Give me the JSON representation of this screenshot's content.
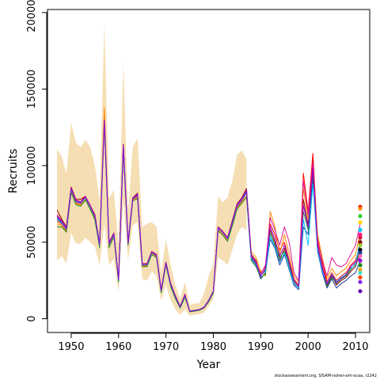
{
  "chart_data": {
    "type": "line",
    "title": "",
    "xlabel": "Year",
    "ylabel": "Recruits",
    "xlim": [
      1945,
      2013
    ],
    "ylim": [
      -9000,
      202000
    ],
    "x_ticks": [
      1950,
      1960,
      1970,
      1980,
      1990,
      2000,
      2010
    ],
    "y_ticks": [
      0,
      50000,
      100000,
      150000,
      200000
    ],
    "x_tick_labels": [
      "1950",
      "1960",
      "1970",
      "1980",
      "1990",
      "2000",
      "2010"
    ],
    "y_tick_labels": [
      "0",
      "50000",
      "100000",
      "150000",
      "200000"
    ],
    "grid": false,
    "legend": "none",
    "band_color": "#f5deb3",
    "band": {
      "x": [
        1947,
        1948,
        1949,
        1950,
        1951,
        1952,
        1953,
        1954,
        1955,
        1956,
        1957,
        1958,
        1959,
        1960,
        1961,
        1962,
        1963,
        1964,
        1965,
        1966,
        1967,
        1968,
        1969,
        1970,
        1971,
        1972,
        1973,
        1974,
        1975,
        1976,
        1977,
        1978,
        1979,
        1980,
        1981,
        1982,
        1983,
        1984,
        1985,
        1986,
        1987
      ],
      "lower": [
        38000,
        41000,
        36000,
        56000,
        49000,
        49000,
        53000,
        50000,
        47000,
        35000,
        62000,
        35000,
        39000,
        17000,
        78000,
        38000,
        61000,
        63000,
        26000,
        25000,
        31000,
        28000,
        12000,
        22000,
        12000,
        6000,
        2500,
        6000,
        2000,
        2500,
        3000,
        4000,
        8000,
        13000,
        40000,
        38000,
        35000,
        45000,
        55000,
        60000,
        58000
      ],
      "upper": [
        111000,
        106000,
        95000,
        128000,
        115000,
        112000,
        117000,
        112000,
        100000,
        78000,
        193000,
        79000,
        84000,
        48000,
        167000,
        70000,
        112000,
        118000,
        60000,
        62000,
        63000,
        60000,
        30000,
        52000,
        35000,
        22000,
        13000,
        24000,
        9000,
        10000,
        10000,
        16000,
        28000,
        36000,
        80000,
        76000,
        79000,
        90000,
        107000,
        110000,
        104000
      ]
    },
    "series": [
      {
        "color": "#8b0000",
        "values": [
          71000,
          65000,
          60000,
          86000,
          78000,
          78000,
          80000,
          74000,
          68000,
          49000,
          131000,
          50000,
          56000,
          26000,
          114000,
          50000,
          79000,
          82000,
          36000,
          36000,
          44000,
          42000,
          19000,
          37000,
          23000,
          15000,
          8000,
          16000,
          5000,
          5500,
          6000,
          7500,
          12000,
          18000,
          60000,
          57000,
          53000,
          64000,
          75000,
          79000,
          85000,
          42000,
          38000,
          28000,
          32000,
          58000,
          50000,
          38000,
          46000,
          35000,
          23000,
          20000,
          78000,
          61000,
          105000,
          48000,
          34000,
          22000,
          28000,
          22000,
          25000,
          27000,
          31000,
          34000,
          44000
        ]
      },
      {
        "color": "#ff0000",
        "values": [
          64000,
          62000,
          58000,
          84000,
          76000,
          75000,
          79000,
          73000,
          66000,
          48000,
          128000,
          48000,
          55000,
          25000,
          112000,
          49000,
          78000,
          80000,
          35000,
          35000,
          43000,
          41000,
          18000,
          36000,
          22000,
          14000,
          7500,
          15000,
          4800,
          5200,
          5800,
          7200,
          11500,
          17500,
          59000,
          56000,
          52000,
          62000,
          73000,
          77000,
          82000,
          40000,
          36000,
          30000,
          34000,
          62000,
          55000,
          45000,
          50000,
          38000,
          26000,
          22000,
          95000,
          70000,
          108000,
          52000,
          37000,
          24000,
          30000,
          25000,
          28000,
          30000,
          35000,
          38000,
          48000
        ]
      },
      {
        "color": "#1e3ca0",
        "values": [
          66000,
          63000,
          59000,
          85000,
          77000,
          76000,
          79500,
          73500,
          67000,
          48500,
          129000,
          49000,
          55500,
          25500,
          113000,
          49500,
          78500,
          81000,
          35500,
          35500,
          43500,
          41500,
          18500,
          36500,
          22500,
          14500,
          7800,
          15500,
          4900,
          5300,
          5900,
          7300,
          11800,
          17800,
          59500,
          56500,
          52500,
          63000,
          74000,
          78000,
          83000,
          39000,
          35000,
          26000,
          30000,
          52000,
          46000,
          35000,
          42000,
          32000,
          22000,
          19000,
          60000,
          55000,
          92000,
          44000,
          30000,
          20000,
          26000,
          20000,
          23000,
          25000,
          28000,
          30000,
          38000
        ]
      },
      {
        "color": "#ff8c00",
        "values": [
          62000,
          61000,
          57000,
          83000,
          75000,
          74000,
          78000,
          72000,
          65000,
          47000,
          138000,
          47000,
          54000,
          24500,
          111000,
          48500,
          77500,
          79000,
          34500,
          34500,
          42500,
          40500,
          17500,
          35500,
          21500,
          13500,
          7200,
          14500,
          4600,
          5000,
          5600,
          7000,
          11200,
          17000,
          58000,
          55000,
          51000,
          61000,
          72000,
          76000,
          80000,
          44000,
          40000,
          31000,
          28000,
          70000,
          60000,
          42000,
          55000,
          42000,
          28000,
          24000,
          85000,
          65000,
          100000,
          55000,
          40000,
          26000,
          33000,
          28000,
          31000,
          33000,
          38000,
          42000,
          56000
        ]
      },
      {
        "color": "#228b22",
        "values": [
          60000,
          60000,
          56500,
          82500,
          74500,
          73500,
          77500,
          71500,
          64500,
          46500,
          127000,
          46500,
          53500,
          24000,
          110000,
          48000,
          77000,
          78500,
          34000,
          34000,
          42000,
          40000,
          17000,
          35000,
          21000,
          13000,
          7000,
          14000,
          4500,
          4900,
          5500,
          6900,
          11000,
          16800,
          57500,
          54500,
          50500,
          60500,
          71500,
          75500,
          79500,
          38000,
          34000,
          27000,
          29000,
          56000,
          48000,
          40000,
          44000,
          36000,
          24000,
          21000,
          70000,
          58000,
          96000,
          46000,
          32000,
          21000,
          27000,
          23000,
          26000,
          28000,
          32000,
          36000,
          46000
        ]
      },
      {
        "color": "#dc1493",
        "values": [
          68000,
          64000,
          59500,
          85500,
          77500,
          76500,
          80000,
          74000,
          67500,
          48800,
          130000,
          49500,
          56000,
          25800,
          113500,
          49800,
          78800,
          81500,
          35800,
          35800,
          43800,
          41800,
          18800,
          36800,
          22800,
          14800,
          7900,
          15800,
          5000,
          5400,
          6000,
          7400,
          11900,
          17900,
          59800,
          56800,
          52800,
          63500,
          74500,
          78500,
          84000,
          41000,
          37000,
          29000,
          35000,
          66000,
          58000,
          48000,
          60000,
          50000,
          30000,
          25000,
          90000,
          68000,
          102000,
          50000,
          38000,
          28000,
          40000,
          35000,
          34000,
          36000,
          42000,
          48000,
          62000
        ]
      },
      {
        "color": "#00bfff",
        "values": [
          65000,
          62500,
          58500,
          84500,
          76500,
          75500,
          79000,
          73000,
          66500,
          48000,
          128500,
          48500,
          55000,
          25200,
          112500,
          49200,
          78200,
          80500,
          35200,
          35200,
          43200,
          41200,
          18200,
          36200,
          22200,
          14200,
          7600,
          15200,
          4850,
          5250,
          5850,
          7250,
          11700,
          17700,
          59200,
          56200,
          52200,
          62500,
          73500,
          77500,
          82500,
          39500,
          35500,
          28500,
          31000,
          54000,
          47000,
          37000,
          43000,
          33000,
          23000,
          20000,
          65000,
          48000,
          88000,
          45000,
          31000,
          23000,
          29000,
          24000,
          27000,
          29000,
          33000,
          35000,
          52000
        ]
      },
      {
        "color": "#9400d3",
        "values": [
          67000,
          63500,
          59000,
          85000,
          77000,
          76000,
          79500,
          73500,
          67000,
          48500,
          129500,
          49000,
          55500,
          25500,
          113000,
          49500,
          78500,
          81000,
          35500,
          35500,
          43500,
          41500,
          18500,
          36500,
          22500,
          14500,
          7800,
          15500,
          4900,
          5300,
          5900,
          7300,
          11800,
          17800,
          59500,
          56500,
          52500,
          63000,
          74000,
          78000,
          83500,
          40500,
          36500,
          27500,
          33000,
          60000,
          52000,
          41000,
          48000,
          37000,
          25000,
          21000,
          74000,
          60000,
          98000,
          47000,
          33000,
          22500,
          28500,
          23500,
          26500,
          28500,
          34000,
          37000,
          40000
        ]
      }
    ],
    "series_x": [
      1947,
      1948,
      1949,
      1950,
      1951,
      1952,
      1953,
      1954,
      1955,
      1956,
      1957,
      1958,
      1959,
      1960,
      1961,
      1962,
      1963,
      1964,
      1965,
      1966,
      1967,
      1968,
      1969,
      1970,
      1971,
      1972,
      1973,
      1974,
      1975,
      1976,
      1977,
      1978,
      1979,
      1980,
      1981,
      1982,
      1983,
      1984,
      1985,
      1986,
      1987,
      1988,
      1989,
      1990,
      1991,
      1992,
      1993,
      1994,
      1995,
      1996,
      1997,
      1998,
      1999,
      2000,
      2001,
      2002,
      2003,
      2004,
      2005,
      2006,
      2007,
      2008,
      2009,
      2010,
      2011
    ],
    "endpoints_2011": [
      {
        "value": 73000,
        "color": "#ff0000"
      },
      {
        "value": 72000,
        "color": "#ff8c00"
      },
      {
        "value": 67000,
        "color": "#32cd32"
      },
      {
        "value": 63000,
        "color": "#ffd700"
      },
      {
        "value": 58000,
        "color": "#00bfff"
      },
      {
        "value": 55000,
        "color": "#ff1493"
      },
      {
        "value": 53000,
        "color": "#dc143c"
      },
      {
        "value": 50000,
        "color": "#8b0000"
      },
      {
        "value": 48000,
        "color": "#9acd32"
      },
      {
        "value": 45000,
        "color": "#000000"
      },
      {
        "value": 43000,
        "color": "#1e3ca0"
      },
      {
        "value": 41000,
        "color": "#ff69b4"
      },
      {
        "value": 38000,
        "color": "#9400d3"
      },
      {
        "value": 35000,
        "color": "#228b22"
      },
      {
        "value": 32000,
        "color": "#ffa500"
      },
      {
        "value": 30000,
        "color": "#40e0d0"
      },
      {
        "value": 27000,
        "color": "#ff4500"
      },
      {
        "value": 24000,
        "color": "#8a2be2"
      },
      {
        "value": 18000,
        "color": "#6a0dad"
      }
    ]
  },
  "credit": "stockassessment.org, SISAM-noher-sim-scaa, r2242"
}
